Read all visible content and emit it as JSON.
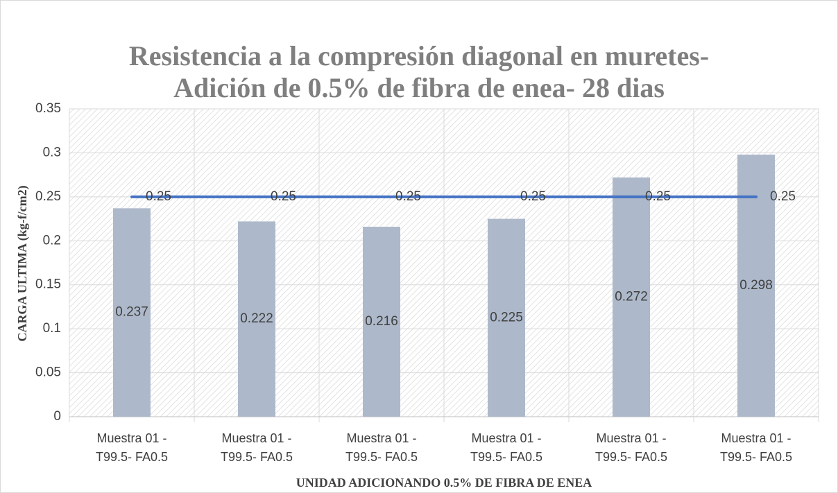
{
  "chart_data": {
    "type": "bar-line",
    "title": "Resistencia a la compresión diagonal en muretes- Adición de 0.5% de fibra de enea- 28 dias",
    "y_label": "CARGA ULTIMA (kg-f/cm2)",
    "x_label": "UNIDAD ADICIONANDO 0.5% DE FIBRA DE ENEA",
    "categories": [
      "Muestra 01 - T99.5- FA0.5",
      "Muestra 01 - T99.5- FA0.5",
      "Muestra 01 - T99.5- FA0.5",
      "Muestra 01 - T99.5- FA0.5",
      "Muestra 01 - T99.5- FA0.5",
      "Muestra 01 - T99.5- FA0.5"
    ],
    "series": [
      {
        "type": "bar",
        "color": "#adb9ca",
        "values": [
          0.237,
          0.222,
          0.216,
          0.225,
          0.272,
          0.298
        ]
      },
      {
        "type": "line",
        "color": "#4472c4",
        "values": [
          0.25,
          0.25,
          0.25,
          0.25,
          0.25,
          0.25
        ]
      }
    ],
    "ylim": [
      0,
      0.35
    ],
    "yticks": [
      0,
      0.05,
      0.1,
      0.15,
      0.2,
      0.25,
      0.3,
      0.35
    ],
    "grid": true
  }
}
